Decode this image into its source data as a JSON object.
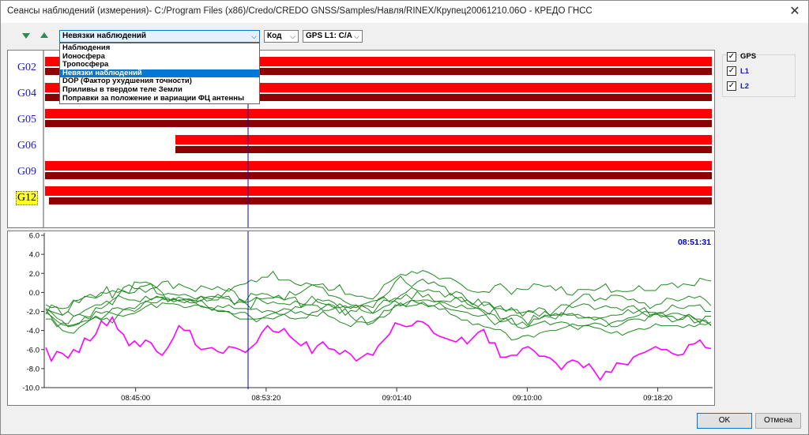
{
  "window": {
    "title": "Сеансы наблюдений (измерения)- C:/Program Files (x86)/Credo/CREDO GNSS/Samples/Навля/RINEX/Крупец20061210.06O - КРЕДО ГНСС",
    "close_glyph": "✕"
  },
  "toolbar": {
    "mode_combo": {
      "value": "Невязки наблюдений"
    },
    "code_combo": {
      "value": "Код"
    },
    "signal_combo": {
      "value": "GPS L1: C/A"
    },
    "arrow_glyph": "⌵"
  },
  "dropdown": {
    "options": [
      "Наблюдения",
      "Ионосфера",
      "Тропосфера",
      "Невязки наблюдений",
      "DOP (Фактор ухудшения точности)",
      "Приливы в твердом теле Земли",
      "Поправки за положение и вариации ФЦ антенны"
    ],
    "selected_index": 3
  },
  "satellites": [
    {
      "id": "G02",
      "highlighted": false
    },
    {
      "id": "G04",
      "highlighted": false
    },
    {
      "id": "G05",
      "highlighted": false
    },
    {
      "id": "G06",
      "highlighted": false
    },
    {
      "id": "G09",
      "highlighted": false
    },
    {
      "id": "G12",
      "highlighted": true
    }
  ],
  "legend": {
    "items": [
      {
        "label": "GPS",
        "checked": true,
        "color": "#000000"
      },
      {
        "label": "L1",
        "checked": true,
        "color": "#1a1acc"
      },
      {
        "label": "L2",
        "checked": true,
        "color": "#1a1acc"
      }
    ],
    "check_glyph": "✓"
  },
  "cursor_time": "08:51:31",
  "colors": {
    "l1_bar": "#ff0000",
    "l2_bar": "#8b0000",
    "residual_lines": "#1f8a1f",
    "highlighted_residual": "#ff00ff",
    "cursor_line": "#0000cc"
  },
  "buttons": {
    "ok": "OK",
    "cancel": "Отмена"
  },
  "chart_data": {
    "type": "line",
    "title": "",
    "xlabel": "",
    "ylabel": "",
    "x_range": [
      "08:39:10",
      "09:21:50"
    ],
    "ylim": [
      -10,
      6
    ],
    "y_ticks": [
      "6.0",
      "4.0",
      "2.0",
      "0.0",
      "-2.0",
      "-4.0",
      "-6.0",
      "-8.0",
      "-10.0"
    ],
    "x_ticks": [
      "08:45:00",
      "08:53:20",
      "09:01:40",
      "09:10:00",
      "09:18:20"
    ],
    "series": [
      {
        "values": [
          -5.8,
          -7.2,
          -6.2,
          -6.4,
          -6.9,
          -6.0,
          -6.3,
          -4.8,
          -5.1,
          -4.4,
          -3.0,
          -3.5,
          -2.6,
          -3.9,
          -4.4,
          -5.6,
          -5.1,
          -5.7,
          -5.0,
          -5.3,
          -6.2,
          -6.6,
          -5.8,
          -4.8,
          -3.5,
          -4.0,
          -4.0,
          -5.5,
          -6.0,
          -5.9,
          -5.8,
          -6.2,
          -6.4,
          -5.7,
          -5.8,
          -6.0,
          -6.3,
          -5.8,
          -5.3,
          -4.2,
          -3.5,
          -4.1,
          -4.2,
          -3.8,
          -4.6,
          -5.1,
          -5.6,
          -5.2,
          -6.4,
          -5.6,
          -5.2,
          -5.9,
          -6.0,
          -6.5,
          -6.1,
          -6.5,
          -7.2,
          -6.8,
          -6.4,
          -6.6,
          -5.6,
          -5.0,
          -4.4,
          -3.2,
          -3.4,
          -3.6,
          -3.5,
          -3.0,
          -3.1,
          -3.5,
          -4.3,
          -4.6,
          -4.8,
          -5.0,
          -5.2,
          -4.7,
          -5.4,
          -4.8,
          -4.2,
          -3.9,
          -5.3,
          -5.3,
          -6.8,
          -6.8,
          -6.6,
          -6.6,
          -5.9,
          -5.7,
          -6.1,
          -6.7,
          -6.7,
          -6.9,
          -7.4,
          -8.1,
          -7.4,
          -7.1,
          -7.3,
          -7.9,
          -7.5,
          -8.3,
          -9.2,
          -8.3,
          -8.4,
          -7.4,
          -7.5,
          -7.6,
          -6.8,
          -6.5,
          -6.3,
          -6.0,
          -5.7,
          -6.0,
          -6.0,
          -6.4,
          -6.6,
          -6.5,
          -5.5,
          -5.4,
          -5.0,
          -5.8,
          -5.9
        ]
      },
      {
        "values": [
          -2.3,
          -1.3,
          -1.6,
          -1.7,
          -1.6,
          -0.8,
          -1.1,
          -0.4,
          -0.5,
          -0.6,
          -0.3,
          0.6,
          -0.6,
          0.4,
          0.1,
          -0.1,
          1.1,
          1.0,
          1.1,
          0.9,
          0.5,
          1.1,
          1.2,
          0.4,
          0.9,
          0.6,
          0.4,
          0.1,
          0.7,
          0.5,
          0.3,
          0.6,
          0.3,
          0.1,
          0.6,
          0.8,
          0.9,
          1.3,
          1.1,
          1.6,
          1.6,
          2.2,
          1.3,
          1.3,
          1.3,
          0.9,
          0.7,
          1.0,
          0.8,
          0.8,
          0.9,
          0.2,
          0.3,
          0.8,
          -0.2,
          -0.2,
          -0.4,
          -0.4,
          -0.6,
          -0.7,
          -0.1,
          0.8,
          1.1,
          1.5,
          1.9,
          1.8,
          2.2,
          2.0,
          2.3,
          2.1,
          1.8,
          1.4,
          1.5,
          1.5,
          1.2,
          0.8,
          0.3,
          0.1,
          0.0,
          0.1,
          0.0,
          0.7,
          0.9,
          0.4,
          -0.2,
          0.4,
          0.3,
          0.3,
          0.9,
          0.8,
          0.6,
          0.7,
          0.2,
          0.6,
          -0.2,
          -0.3,
          0.3,
          0.3,
          0.3,
          0.2,
          0.5,
          0.9,
          0.0,
          0.2,
          0.1,
          0.1,
          0.2,
          0.7,
          0.2,
          0.2,
          0.2,
          0.8,
          0.8,
          1.0,
          0.5,
          0.9,
          0.8,
          0.7,
          1.5,
          1.3,
          1.2
        ]
      },
      {
        "values": [
          -1.3,
          -1.6,
          -1.5,
          -2.4,
          -2.0,
          -0.9,
          -0.8,
          -0.5,
          -0.2,
          -0.5,
          0.0,
          -0.1,
          0.2,
          0.0,
          0.2,
          -0.1,
          0.0,
          0.6,
          0.7,
          0.9,
          -0.1,
          -0.3,
          -0.1,
          -0.2,
          -0.3,
          -0.2,
          -0.4,
          -0.7,
          -0.4,
          -0.6,
          -0.7,
          -0.2,
          -0.5,
          -0.4,
          -1.3,
          -0.7,
          -1.0,
          -0.1,
          -0.3,
          -0.1,
          -0.2,
          -0.5,
          -0.5,
          -0.8,
          0.1,
          -0.3,
          0.0,
          0.4,
          0.8,
          0.6,
          0.5,
          -0.3,
          -0.4,
          -0.6,
          -1.0,
          -1.3,
          -1.4,
          -1.4,
          -1.4,
          -1.6,
          -0.7,
          -0.4,
          0.1,
          1.1,
          1.7,
          1.0,
          0.6,
          1.1,
          1.4,
          0.9,
          1.1,
          0.7,
          0.6,
          -0.3,
          0.1,
          -0.1,
          -0.8,
          -1.2,
          -1.5,
          -1.0,
          -1.1,
          -1.7,
          -1.7,
          -1.9,
          -1.8,
          -1.8,
          -2.5,
          -1.9,
          -2.0,
          -1.6,
          -1.8,
          -2.5,
          -2.2,
          -2.5,
          -1.6,
          -1.1,
          -0.7,
          -0.2,
          -0.2,
          -0.9,
          -0.6,
          -0.8,
          -0.3,
          -0.3,
          -0.4,
          -0.8,
          -0.7,
          -1.1,
          -1.1,
          -1.7,
          -1.3,
          -1.2,
          -0.6,
          -0.7,
          -0.9,
          -0.7,
          -0.4,
          -0.6,
          -0.4,
          -0.8,
          -1.4
        ]
      },
      {
        "values": [
          -1.7,
          -2.0,
          -2.2,
          -2.4,
          -2.0,
          -2.5,
          -2.3,
          -1.9,
          -1.6,
          -1.3,
          -1.3,
          -0.9,
          -1.3,
          -0.3,
          -0.6,
          -0.8,
          -0.8,
          -1.0,
          -0.4,
          -0.8,
          -0.4,
          -0.6,
          -0.8,
          -0.7,
          -0.9,
          -1.1,
          -0.8,
          -0.9,
          -0.9,
          -0.5,
          -0.4,
          -0.5,
          -0.6,
          -0.7,
          -1.2,
          -1.0,
          -1.1,
          -1.7,
          -0.6,
          -0.7,
          -0.6,
          -0.6,
          -0.3,
          -0.8,
          -0.6,
          -0.5,
          -1.5,
          -1.1,
          -0.4,
          -1.0,
          -1.2,
          -1.3,
          -1.6,
          -1.6,
          -2.4,
          -1.9,
          -2.0,
          -1.4,
          -1.7,
          -2.2,
          -1.4,
          -0.8,
          -0.9,
          -0.6,
          -0.7,
          -0.2,
          -0.7,
          0.1,
          -0.5,
          -0.2,
          -0.9,
          -1.0,
          -1.1,
          -1.4,
          -1.6,
          -1.3,
          -1.7,
          -1.7,
          -1.6,
          -1.9,
          -2.3,
          -1.6,
          -1.4,
          -2.0,
          -1.6,
          -2.2,
          -2.1,
          -2.0,
          -2.1,
          -2.5,
          -2.0,
          -2.4,
          -1.8,
          -1.3,
          -1.3,
          -1.6,
          -1.4,
          -1.2,
          -1.3,
          -1.8,
          -1.6,
          -1.4,
          -1.6,
          -1.6,
          -1.9,
          -1.5,
          -1.4,
          -1.9,
          -2.3,
          -2.6,
          -2.2,
          -2.2,
          -1.9,
          -1.3,
          -1.6,
          -1.7,
          -1.4,
          -1.4,
          -1.3,
          -2.0,
          -2.0
        ]
      },
      {
        "values": [
          -2.8,
          -2.8,
          -3.6,
          -3.2,
          -3.3,
          -2.5,
          -2.3,
          -2.5,
          -2.6,
          -1.6,
          -1.7,
          -1.3,
          -0.8,
          -0.4,
          0.5,
          0.8,
          0.4,
          0.4,
          0.0,
          0.4,
          0.5,
          0.0,
          -1.0,
          -0.6,
          -0.9,
          -0.7,
          -0.7,
          -0.9,
          -0.4,
          -0.9,
          -0.8,
          -0.8,
          -0.2,
          0.4,
          0.1,
          -0.8,
          -1.1,
          -0.9,
          -0.5,
          -0.9,
          -1.2,
          -1.0,
          -1.2,
          -1.2,
          -1.3,
          -0.9,
          -1.2,
          -1.3,
          -1.3,
          -1.4,
          -1.9,
          -1.9,
          -1.7,
          -1.2,
          -1.6,
          -1.5,
          -1.6,
          -1.3,
          -1.1,
          -0.9,
          -0.8,
          -0.5,
          -1.0,
          -0.9,
          -1.3,
          -1.4,
          -0.8,
          -0.9,
          -0.8,
          -0.8,
          -1.0,
          -0.9,
          -0.9,
          -1.0,
          -0.5,
          -1.0,
          -0.8,
          -1.3,
          -0.7,
          -1.4,
          -1.2,
          -1.8,
          -2.8,
          -2.7,
          -2.4,
          -2.4,
          -2.7,
          -3.4,
          -2.4,
          -2.8,
          -2.5,
          -2.6,
          -2.8,
          -2.1,
          -2.4,
          -2.4,
          -2.3,
          -2.6,
          -2.7,
          -2.6,
          -2.7,
          -2.6,
          -2.4,
          -2.4,
          -2.3,
          -1.8,
          -2.2,
          -1.9,
          -1.6,
          -2.4,
          -2.3,
          -2.4,
          -2.6,
          -3.1,
          -2.9,
          -2.8,
          -2.3,
          -2.7,
          -3.2,
          -2.5,
          -2.5
        ]
      },
      {
        "values": [
          -2.1,
          -2.5,
          -3.0,
          -3.4,
          -3.5,
          -3.4,
          -3.2,
          -3.0,
          -2.9,
          -2.6,
          -2.9,
          -2.7,
          -3.2,
          -2.4,
          -2.5,
          -2.3,
          -2.2,
          -1.9,
          -1.5,
          -1.2,
          -1.6,
          -1.1,
          -1.2,
          -1.2,
          -1.3,
          -1.6,
          -1.5,
          -1.3,
          -1.4,
          -1.6,
          -1.8,
          -1.9,
          -1.9,
          -2.1,
          -2.3,
          -2.1,
          -2.1,
          -2.6,
          -3.1,
          -2.7,
          -2.7,
          -2.8,
          -2.5,
          -2.3,
          -2.0,
          -1.5,
          -1.6,
          -1.3,
          -1.3,
          -0.7,
          -0.9,
          -0.8,
          -1.1,
          -1.6,
          -1.4,
          -1.7,
          -1.3,
          -1.9,
          -2.1,
          -2.2,
          -1.9,
          -1.5,
          -1.3,
          -0.8,
          -0.3,
          0.0,
          0.5,
          0.2,
          0.1,
          0.3,
          0.1,
          0.1,
          -0.5,
          -0.1,
          -0.6,
          -0.5,
          -1.2,
          -1.5,
          -1.7,
          -2.1,
          -2.8,
          -3.4,
          -3.0,
          -2.7,
          -3.3,
          -3.4,
          -3.1,
          -3.6,
          -2.8,
          -2.8,
          -2.4,
          -2.4,
          -2.4,
          -2.3,
          -2.3,
          -2.2,
          -2.7,
          -2.7,
          -2.6,
          -2.9,
          -2.7,
          -3.0,
          -3.6,
          -3.6,
          -3.3,
          -2.9,
          -2.8,
          -2.8,
          -3.0,
          -2.4,
          -2.2,
          -2.1,
          -2.5,
          -2.5,
          -2.9,
          -2.6,
          -2.3,
          -2.8,
          -2.8,
          -3.1,
          -3.4
        ]
      },
      {
        "values": [
          -1.7,
          -2.1,
          -2.7,
          -3.0,
          -3.6,
          -3.5,
          -3.3,
          -2.6,
          -2.8,
          -2.0,
          -2.2,
          -2.0,
          -2.2,
          -2.4,
          -1.8,
          -1.8,
          -2.0,
          -1.6,
          -0.9,
          -1.1,
          -1.1,
          -0.7,
          -0.8,
          -0.8,
          -0.5,
          -0.7,
          -0.8,
          -1.1,
          -0.8,
          -1.4,
          -1.9,
          -1.4,
          -1.6,
          -1.3,
          -1.7,
          -1.7,
          -1.7,
          -1.8,
          -1.7,
          -2.1,
          -1.9,
          -2.0,
          -2.3,
          -2.3,
          -2.7,
          -2.8,
          -2.7,
          -2.7,
          -2.1,
          -2.0,
          -1.6,
          -1.2,
          -1.4,
          -2.2,
          -1.7,
          -2.5,
          -3.0,
          -2.5,
          -3.4,
          -3.2,
          -2.7,
          -1.9,
          -1.9,
          -1.5,
          -1.1,
          -1.5,
          -1.4,
          -1.3,
          -1.0,
          -1.4,
          -1.4,
          -1.1,
          -1.6,
          -1.8,
          -1.9,
          -2.0,
          -2.1,
          -2.4,
          -2.5,
          -2.4,
          -2.2,
          -2.4,
          -3.1,
          -3.0,
          -2.7,
          -3.6,
          -3.8,
          -3.6,
          -3.4,
          -3.2,
          -3.0,
          -3.4,
          -3.2,
          -3.1,
          -3.2,
          -3.6,
          -3.9,
          -3.5,
          -3.4,
          -3.2,
          -3.3,
          -3.6,
          -3.2,
          -3.0,
          -3.0,
          -2.7,
          -2.6,
          -2.4,
          -2.0,
          -2.1,
          -2.1,
          -2.6,
          -2.4,
          -2.2,
          -2.2,
          -2.4,
          -2.5,
          -3.2,
          -3.0,
          -2.9,
          -3.5
        ]
      },
      {
        "values": [
          -1.8,
          -2.6,
          -3.4,
          -4.0,
          -4.2,
          -4.3,
          -3.7,
          -3.3,
          -2.9,
          -2.5,
          -2.8,
          -2.3,
          -1.7,
          -1.6,
          -1.8,
          -1.6,
          -1.7,
          -1.2,
          -1.0,
          -0.7,
          -0.5,
          -0.5,
          -0.6,
          -1.0,
          -0.8,
          -0.8,
          -1.1,
          -1.1,
          -1.5,
          -1.6,
          -1.6,
          -2.0,
          -2.0,
          -2.0,
          -2.5,
          -2.8,
          -2.8,
          -2.8,
          -2.8,
          -2.7,
          -2.4,
          -2.2,
          -2.0,
          -1.7,
          -1.8,
          -2.2,
          -2.0,
          -2.3,
          -2.4,
          -2.5,
          -2.0,
          -2.5,
          -2.7,
          -3.1,
          -3.3,
          -3.6,
          -3.1,
          -3.1,
          -3.2,
          -3.0,
          -2.6,
          -2.6,
          -2.2,
          -1.3,
          -1.4,
          -1.1,
          -0.8,
          -1.1,
          -1.2,
          -1.5,
          -1.4,
          -1.8,
          -1.7,
          -2.3,
          -2.5,
          -2.9,
          -2.9,
          -3.4,
          -3.3,
          -3.6,
          -3.7,
          -3.9,
          -3.9,
          -4.3,
          -5.0,
          -4.9,
          -4.6,
          -4.5,
          -4.7,
          -4.3,
          -4.1,
          -4.0,
          -4.0,
          -3.8,
          -3.6,
          -3.3,
          -3.5,
          -3.5,
          -3.5,
          -3.7,
          -3.8,
          -4.1,
          -4.3,
          -4.1,
          -4.5,
          -4.2,
          -4.0,
          -3.8,
          -3.9,
          -3.7,
          -3.3,
          -3.5,
          -3.5,
          -3.5,
          -3.5,
          -3.7,
          -3.4,
          -3.6,
          -3.3,
          -3.4,
          -3.1
        ]
      }
    ]
  }
}
